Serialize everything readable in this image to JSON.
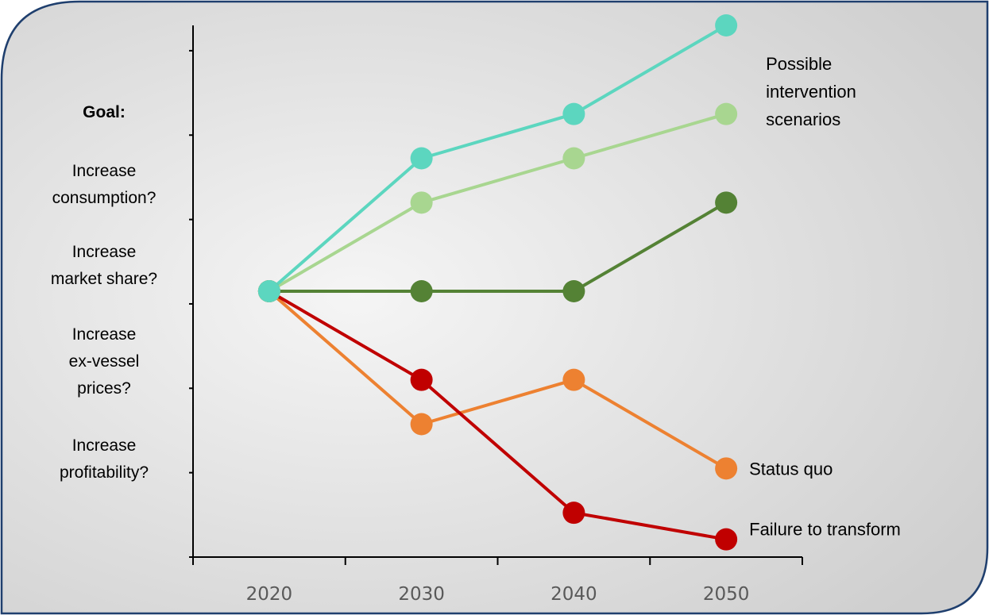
{
  "chart_data": {
    "type": "line",
    "title": "",
    "xlabel": "",
    "ylabel": "",
    "x": [
      2020,
      2030,
      2040,
      2050
    ],
    "xlim": [
      2015,
      2055
    ],
    "ylim": [
      -3,
      3
    ],
    "grid": false,
    "tick_labels": [
      "2020",
      "2030",
      "2040",
      "2050"
    ],
    "series": [
      {
        "key": "s-teal",
        "color": "#5cd6bf",
        "values": [
          0,
          1.5,
          2,
          3
        ]
      },
      {
        "key": "s-lightgreen",
        "color": "#a8d690",
        "values": [
          0,
          1,
          1.5,
          2
        ]
      },
      {
        "key": "s-darkgreen",
        "color": "#548235",
        "values": [
          0,
          0,
          0,
          1
        ]
      },
      {
        "key": "s-orange",
        "color": "#ed8131",
        "values": [
          0,
          -1.5,
          -1,
          -2
        ]
      },
      {
        "key": "s-red",
        "color": "#c00000",
        "values": [
          0,
          -1,
          -2.5,
          -2.8
        ]
      }
    ],
    "annotations": [
      {
        "lines": [
          "Possible",
          "intervention",
          "scenarios"
        ],
        "series_ref": "upper"
      },
      {
        "lines": [
          "Status quo"
        ],
        "series_ref": "s-orange"
      },
      {
        "lines": [
          "Failure to transform"
        ],
        "series_ref": "s-red"
      }
    ]
  },
  "goal_panel": {
    "heading": "Goal:",
    "items": [
      [
        "Increase",
        "consumption?"
      ],
      [
        "Increase",
        "market share?"
      ],
      [
        "Increase",
        "ex-vessel",
        "prices?"
      ],
      [
        "Increase",
        "profitability?"
      ]
    ]
  },
  "colors": {
    "frame_border": "#1f3f6e",
    "gradient_light": "#f5f5f5",
    "gradient_dark": "#cfcfcf",
    "axis": "#000000",
    "tick_text": "#595959"
  }
}
